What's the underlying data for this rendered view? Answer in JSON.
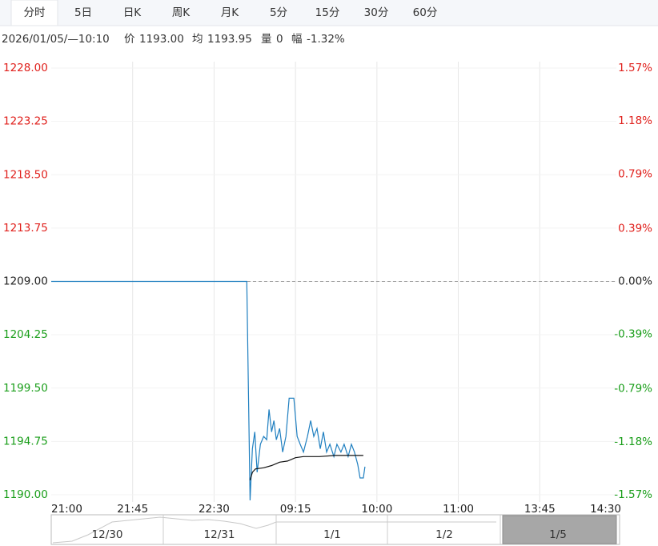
{
  "tabs": [
    "分时",
    "5日",
    "日K",
    "周K",
    "月K",
    "5分",
    "15分",
    "30分",
    "60分"
  ],
  "active_tab": "分时",
  "info": {
    "time": "2026/01/05/—10:10",
    "price_label": "价",
    "price": "1193.00",
    "avg_label": "均",
    "avg": "1193.95",
    "volume_label": "量",
    "volume": "0",
    "change_label": "幅",
    "change": "-1.32%"
  },
  "chart_data": {
    "type": "line",
    "xlim": [
      0,
      315
    ],
    "xticks": [
      {
        "value": 0,
        "label": "21:00"
      },
      {
        "value": 45,
        "label": "21:45"
      },
      {
        "value": 90,
        "label": "22:30"
      },
      {
        "value": 135,
        "label": "09:15"
      },
      {
        "value": 180,
        "label": "10:00"
      },
      {
        "value": 225,
        "label": "11:00"
      },
      {
        "value": 270,
        "label": "13:45"
      },
      {
        "value": 315,
        "label": "14:30"
      }
    ],
    "ylim": [
      1190,
      1228
    ],
    "yticks": [
      {
        "value": 1228,
        "label": "1228.00"
      },
      {
        "value": 1223.25,
        "label": "1223.25"
      },
      {
        "value": 1218.5,
        "label": "1218.50"
      },
      {
        "value": 1213.75,
        "label": "1213.75"
      },
      {
        "value": 1209,
        "label": "1209.00"
      },
      {
        "value": 1204.25,
        "label": "1204.25"
      },
      {
        "value": 1199.5,
        "label": "1199.50"
      },
      {
        "value": 1194.75,
        "label": "1194.75"
      },
      {
        "value": 1190,
        "label": "1190.00"
      }
    ],
    "y2lim": [
      -1.57,
      1.57
    ],
    "y2ticks": [
      {
        "value": 1.57,
        "label": "1.57%"
      },
      {
        "value": 1.18,
        "label": "1.18%"
      },
      {
        "value": 0.79,
        "label": "0.79%"
      },
      {
        "value": 0.39,
        "label": "0.39%"
      },
      {
        "value": 0,
        "label": "0.00%"
      },
      {
        "value": -0.39,
        "label": "-0.39%"
      },
      {
        "value": -0.79,
        "label": "-0.79%"
      },
      {
        "value": -1.18,
        "label": "-1.18%"
      },
      {
        "value": -1.57,
        "label": "-1.57%"
      }
    ],
    "up_color": "#e0201c",
    "down_color": "#1a9e1a",
    "flat_color": "#222222",
    "grid": true,
    "series": [
      {
        "color": "#1f7fc0",
        "x": [
          0,
          108.1,
          109.9,
          111.2,
          112.5,
          113.8,
          115.6,
          117.4,
          119.1,
          120.4,
          121.8,
          123.1,
          124.4,
          126.2,
          127.9,
          129.7,
          131.5,
          134.1,
          135.9,
          137.6,
          139.4,
          141.6,
          143.4,
          145.1,
          146.9,
          148.7,
          150.4,
          152.2,
          154,
          156.2,
          157.9,
          160.1,
          161.9,
          164.1,
          165.9,
          167.6,
          169.4,
          170.7,
          172.5,
          173.4
        ],
        "values": [
          1209,
          1209,
          1189.5,
          1194.1,
          1195.6,
          1192,
          1194.5,
          1195.2,
          1194.9,
          1197.6,
          1195.6,
          1196.6,
          1194.9,
          1195.9,
          1193.8,
          1195.2,
          1198.6,
          1198.6,
          1195.2,
          1194.5,
          1193.8,
          1195.2,
          1196.6,
          1195.2,
          1195.9,
          1194.1,
          1195.6,
          1193.8,
          1194.5,
          1193.4,
          1194.5,
          1193.8,
          1194.5,
          1193.4,
          1194.5,
          1193.8,
          1192.7,
          1191.5,
          1191.5,
          1192.5
        ]
      },
      {
        "color": "#111111",
        "x": [
          109.9,
          111.2,
          112.9,
          117.4,
          121.8,
          126.2,
          130.6,
          135,
          139.4,
          148.2,
          157.1,
          165.9,
          172.5
        ],
        "values": [
          1191.3,
          1192,
          1192.3,
          1192.4,
          1192.6,
          1192.9,
          1193,
          1193.3,
          1193.4,
          1193.4,
          1193.5,
          1193.5,
          1193.5
        ]
      }
    ]
  },
  "navigator": {
    "labels": [
      "12/30",
      "12/31",
      "1/1",
      "1/2",
      "1/5"
    ]
  }
}
